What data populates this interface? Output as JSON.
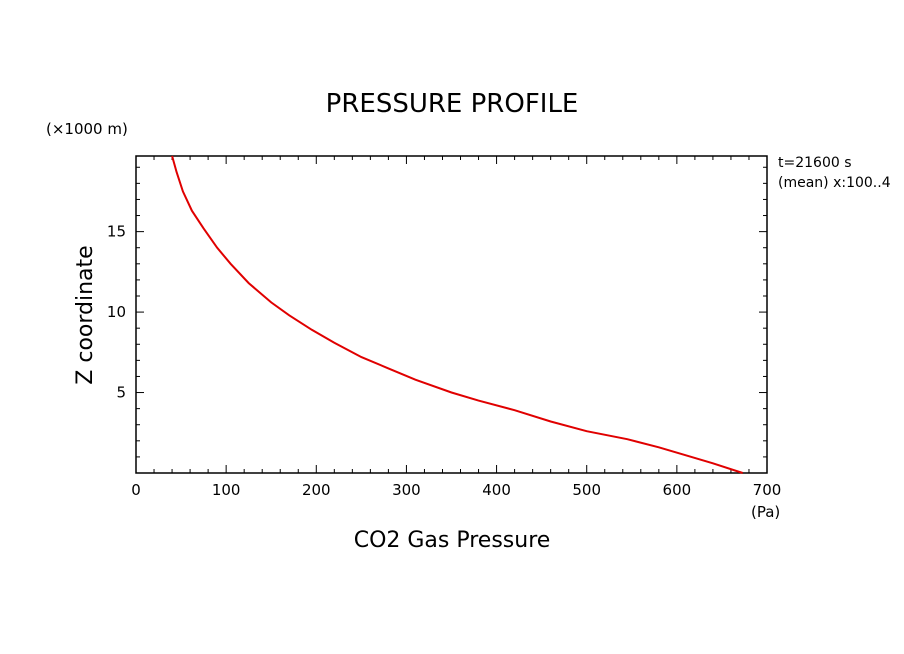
{
  "chart_data": {
    "type": "line",
    "title": "PRESSURE PROFILE",
    "xlabel": "CO2 Gas Pressure",
    "x_unit": "(Pa)",
    "ylabel": "Z coordinate",
    "y_unit": "(×1000 m)",
    "xlim": [
      0,
      700
    ],
    "ylim": [
      0,
      19.7
    ],
    "x_ticks": [
      0,
      100,
      200,
      300,
      400,
      500,
      600,
      700
    ],
    "y_ticks": [
      5,
      10,
      15
    ],
    "grid": false,
    "annotations": [
      "t=21600 s",
      "(mean) x:100..4"
    ],
    "series": [
      {
        "color": "#e00000",
        "points": [
          [
            673,
            0
          ],
          [
            640,
            0.6
          ],
          [
            610,
            1.1
          ],
          [
            580,
            1.6
          ],
          [
            545,
            2.1
          ],
          [
            500,
            2.6
          ],
          [
            460,
            3.2
          ],
          [
            420,
            3.9
          ],
          [
            380,
            4.5
          ],
          [
            350,
            5.0
          ],
          [
            310,
            5.8
          ],
          [
            280,
            6.5
          ],
          [
            250,
            7.2
          ],
          [
            220,
            8.1
          ],
          [
            195,
            8.9
          ],
          [
            170,
            9.8
          ],
          [
            150,
            10.6
          ],
          [
            125,
            11.8
          ],
          [
            105,
            13.0
          ],
          [
            90,
            14.0
          ],
          [
            75,
            15.2
          ],
          [
            62,
            16.3
          ],
          [
            52,
            17.5
          ],
          [
            45,
            18.7
          ],
          [
            40,
            19.7
          ]
        ]
      }
    ]
  }
}
